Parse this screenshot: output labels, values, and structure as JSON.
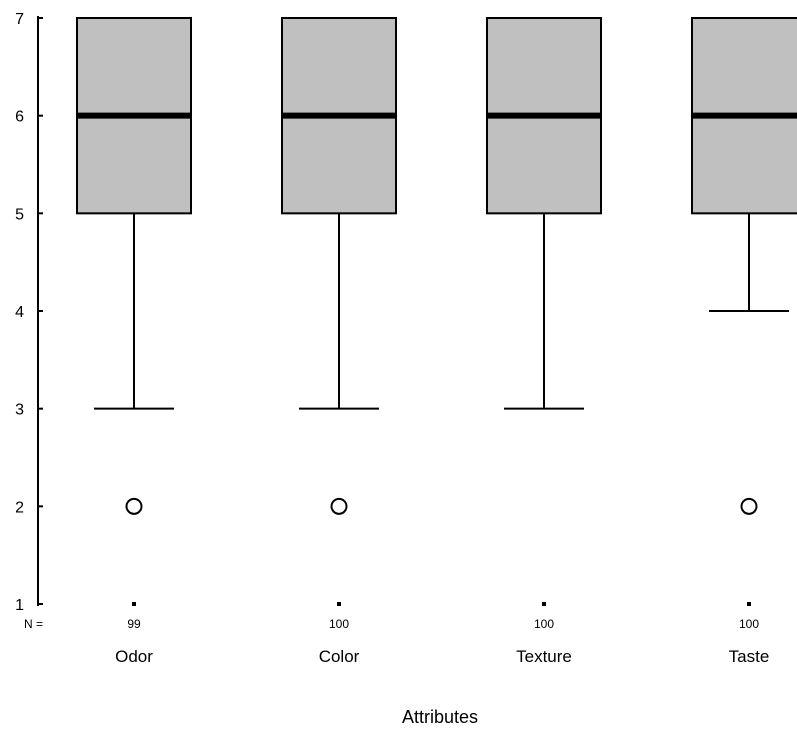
{
  "chart_data": {
    "type": "boxplot",
    "xlabel": "Attributes",
    "ylabel": "",
    "ylim": [
      1,
      7
    ],
    "yticks": [
      "1",
      "2",
      "3",
      "4",
      "5",
      "6",
      "7"
    ],
    "n_prefix": "N =",
    "categories": [
      "Odor",
      "Color",
      "Texture",
      "Taste"
    ],
    "n": [
      "99",
      "100",
      "100",
      "100"
    ],
    "boxes": [
      {
        "category": "Odor",
        "whisker_low": 3,
        "q1": 5,
        "median": 6,
        "q3": 7,
        "whisker_high": 7,
        "outliers": [
          2
        ]
      },
      {
        "category": "Color",
        "whisker_low": 3,
        "q1": 5,
        "median": 6,
        "q3": 7,
        "whisker_high": 7,
        "outliers": [
          2
        ]
      },
      {
        "category": "Texture",
        "whisker_low": 3,
        "q1": 5,
        "median": 6,
        "q3": 7,
        "whisker_high": 7,
        "outliers": []
      },
      {
        "category": "Taste",
        "whisker_low": 4,
        "q1": 5,
        "median": 6,
        "q3": 7,
        "whisker_high": 7,
        "outliers": [
          2
        ]
      }
    ],
    "box_color": "#c0c0c0",
    "line_color": "#000000"
  }
}
